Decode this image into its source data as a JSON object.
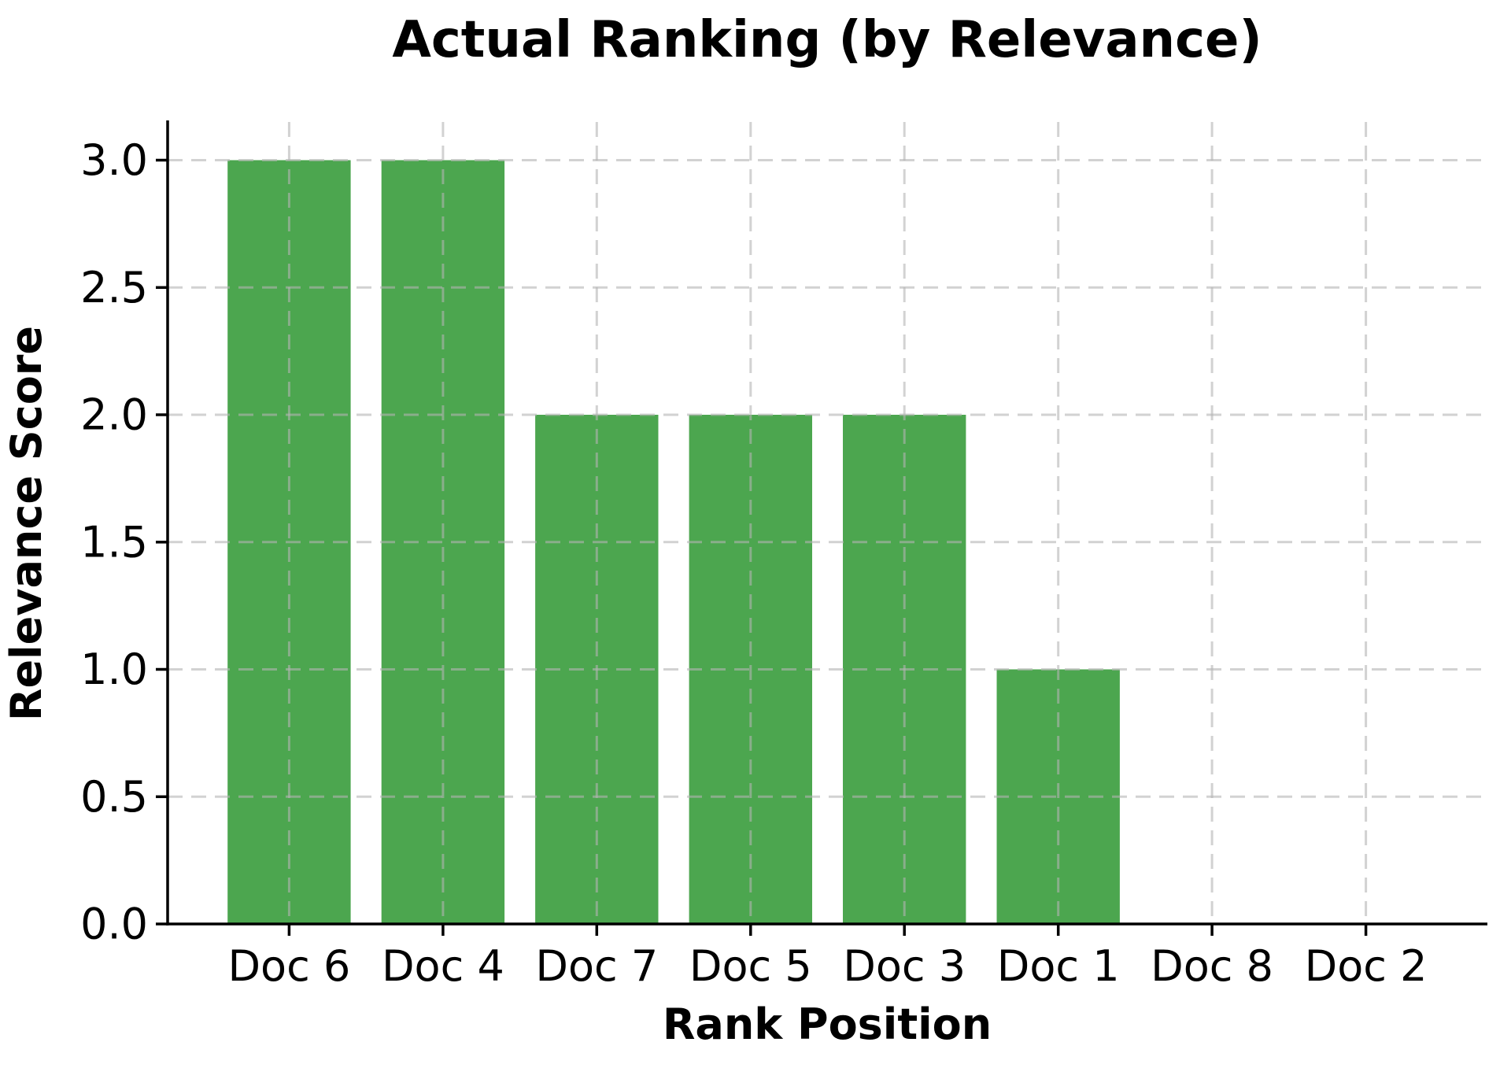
{
  "chart_data": {
    "type": "bar",
    "title": "Actual Ranking (by Relevance)",
    "xlabel": "Rank Position",
    "ylabel": "Relevance Score",
    "categories": [
      "Doc 6",
      "Doc 4",
      "Doc 7",
      "Doc 5",
      "Doc 3",
      "Doc 1",
      "Doc 8",
      "Doc 2"
    ],
    "values": [
      3,
      3,
      2,
      2,
      2,
      1,
      0,
      0
    ],
    "ytick_values": [
      0,
      0.5,
      1,
      1.5,
      2,
      2.5,
      3
    ],
    "ytick_labels": [
      "0.0",
      "0.5",
      "1.0",
      "1.5",
      "2.0",
      "2.5",
      "3.0"
    ],
    "ylim": [
      0,
      3.15
    ],
    "xlim": [
      -0.79,
      7.79
    ],
    "bar_width_fraction": 0.8,
    "bar_color": "#4CA64F",
    "grid_color": "#b4b4b4",
    "grid_style": "dashed, horizontal and vertical, drawn above bars",
    "spine_color": "#000000",
    "text_color": "#000000",
    "background_color": "#ffffff",
    "legend": "none"
  }
}
